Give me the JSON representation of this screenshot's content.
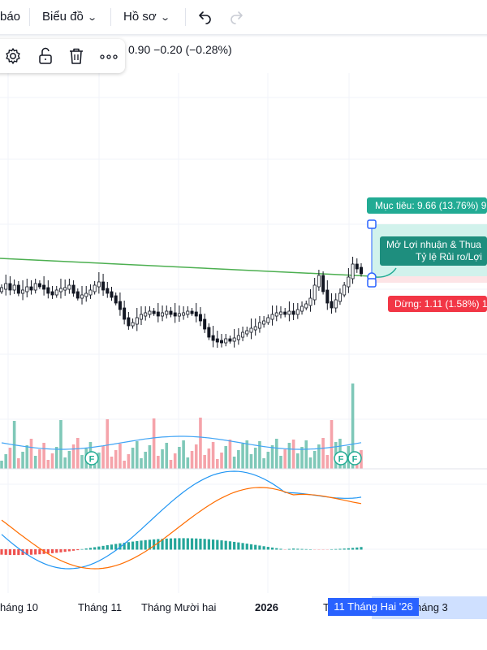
{
  "toolbar": {
    "partial_item": "báo",
    "chart_type_label": "Biểu đồ",
    "profile_label": "Hồ sơ",
    "undo_icon": "undo-icon",
    "redo_icon": "redo-icon"
  },
  "floating_toolbar": {
    "icons": [
      "gear-icon",
      "unlock-icon",
      "trash-icon",
      "more-icon"
    ]
  },
  "legend": {
    "ohlc_text": "0.90  −0.20 (−0.28%)"
  },
  "position_tool": {
    "target_label": "Mục tiêu: 9.66 (13.76%) 9",
    "stop_label": "Dừng: 1.11 (1.58%) 1",
    "info_line1": "Mở Lợi nhuận & Thua",
    "info_line2": "Tỷ lệ Rủi ro/Lợi",
    "colors": {
      "target": "#22ab94",
      "stop": "#f23645",
      "target_zone": "#d1f2ec",
      "stop_zone": "#fde4e6"
    }
  },
  "time_axis": {
    "labels": [
      "háng 10",
      "Tháng 11",
      "Tháng Mười hai",
      "2026",
      "T",
      "háng 3"
    ],
    "crosshair_label": "11 Tháng Hai '26"
  },
  "markers": {
    "label": "F"
  }
}
